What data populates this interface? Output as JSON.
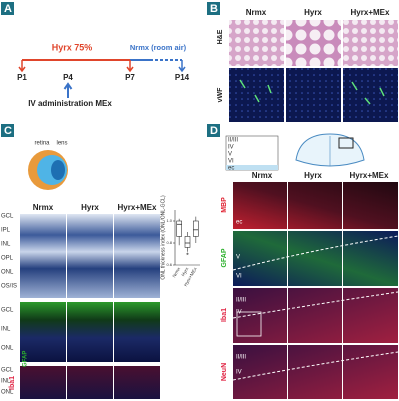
{
  "panel_a": {
    "label": "A",
    "hyrx": "Hyrx 75%",
    "nrmx": "Nrmx (room air)",
    "days": [
      "P1",
      "P4",
      "P7",
      "P14"
    ],
    "injection": "IV administration MEx"
  },
  "panel_b": {
    "label": "B",
    "columns": [
      "Nrmx",
      "Hyrx",
      "Hyrx+MEx"
    ],
    "rows": [
      "H&E",
      "vWF"
    ]
  },
  "panel_c": {
    "label": "C",
    "eye_labels": [
      "retina",
      "lens"
    ],
    "columns": [
      "Nrmx",
      "Hyrx",
      "Hyrx+MEx"
    ],
    "retina_layers": [
      "GCL",
      "IPL",
      "INL",
      "OPL",
      "ONL",
      "OS/IS"
    ],
    "gfap_layers": [
      "GCL",
      "INL",
      "ONL"
    ],
    "gfap_stain": "GFAP",
    "iba1_layers": [
      "GCL",
      "INL",
      "ONL"
    ],
    "iba1_stain": "Iba1",
    "chart_data": {
      "type": "box",
      "y_label": "ONL thickness index (ONL/ONL-GCL)",
      "categories": [
        "Nrmx",
        "Hyrx",
        "Hyrx+MEx"
      ],
      "boxes": [
        {
          "min": 0.78,
          "q1": 0.86,
          "median": 0.97,
          "q3": 1.0,
          "max": 1.02
        },
        {
          "min": 0.72,
          "q1": 0.76,
          "median": 0.8,
          "q3": 0.86,
          "max": 0.9
        },
        {
          "min": 0.8,
          "q1": 0.86,
          "median": 0.92,
          "q3": 1.0,
          "max": 1.04
        }
      ],
      "annotation": "*",
      "ylim": [
        0.6,
        1.1
      ],
      "yticks": [
        0.6,
        0.8,
        {
          "value": 1,
          "label": "1.0"
        }
      ]
    }
  },
  "panel_d": {
    "label": "D",
    "diagram_layers": [
      "II/III",
      "IV",
      "V",
      "VI",
      "ec"
    ],
    "columns": [
      "Nrmx",
      "Hyrx",
      "Hyrx+MEx"
    ],
    "rows": [
      "MBP",
      "GFAP",
      "Iba1",
      "NeuN"
    ],
    "image_labels": [
      "ec",
      "V",
      "VI",
      "II/III",
      "IV",
      "II/III",
      "IV"
    ]
  }
}
